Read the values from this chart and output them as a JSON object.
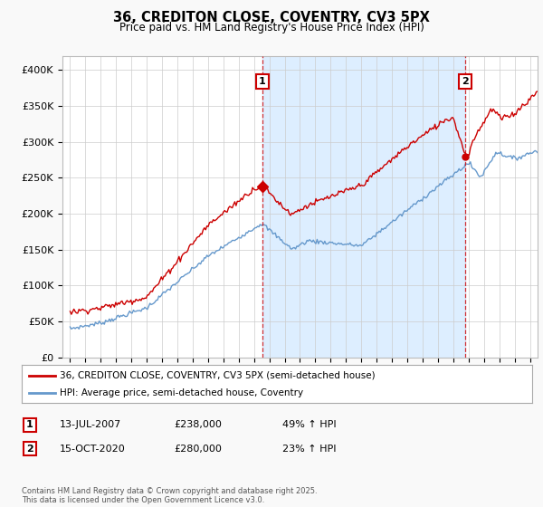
{
  "title": "36, CREDITON CLOSE, COVENTRY, CV3 5PX",
  "subtitle": "Price paid vs. HM Land Registry's House Price Index (HPI)",
  "line1_label": "36, CREDITON CLOSE, COVENTRY, CV3 5PX (semi-detached house)",
  "line2_label": "HPI: Average price, semi-detached house, Coventry",
  "line1_color": "#cc0000",
  "line2_color": "#6699cc",
  "shade_color": "#ddeeff",
  "marker1_date_x": 2007.54,
  "marker2_date_x": 2020.79,
  "marker1_y": 238000,
  "marker2_y": 280000,
  "annotation1": "1",
  "annotation2": "2",
  "note1_date": "13-JUL-2007",
  "note1_price": "£238,000",
  "note1_hpi": "49% ↑ HPI",
  "note2_date": "15-OCT-2020",
  "note2_price": "£280,000",
  "note2_hpi": "23% ↑ HPI",
  "ylim": [
    0,
    420000
  ],
  "xlim": [
    1994.5,
    2025.5
  ],
  "yticks": [
    0,
    50000,
    100000,
    150000,
    200000,
    250000,
    300000,
    350000,
    400000
  ],
  "footer": "Contains HM Land Registry data © Crown copyright and database right 2025.\nThis data is licensed under the Open Government Licence v3.0.",
  "background_color": "#f9f9f9",
  "plot_bg": "#ffffff",
  "grid_color": "#cccccc"
}
